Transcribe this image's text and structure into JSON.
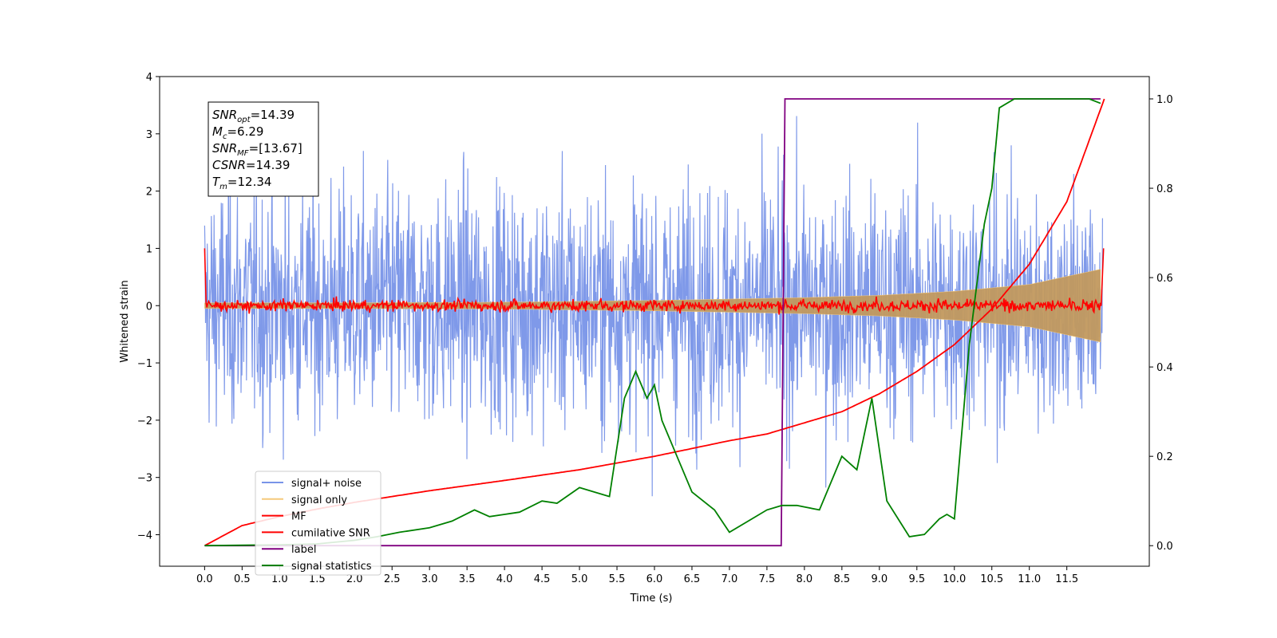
{
  "chart_data": {
    "type": "line",
    "title": "",
    "xlabel": "Time (s)",
    "ylabel": "Whitened strain",
    "xlim": [
      -0.6,
      12.6
    ],
    "ylim": [
      -4.55,
      4.0
    ],
    "y2lim": [
      -0.046,
      1.05
    ],
    "xticks": [
      0.0,
      0.5,
      1.0,
      1.5,
      2.0,
      2.5,
      3.0,
      3.5,
      4.0,
      4.5,
      5.0,
      5.5,
      6.0,
      6.5,
      7.0,
      7.5,
      8.0,
      8.5,
      9.0,
      9.5,
      10.0,
      10.5,
      11.0,
      11.5
    ],
    "xtick_labels": [
      "0.0",
      "0.5",
      "1.0",
      "1.5",
      "2.0",
      "2.5",
      "3.0",
      "3.5",
      "4.0",
      "4.5",
      "5.0",
      "5.5",
      "6.0",
      "6.5",
      "7.0",
      "7.5",
      "8.0",
      "8.5",
      "9.0",
      "9.5",
      "10.0",
      "10.5",
      "11.0",
      "11.5"
    ],
    "yticks": [
      4,
      3,
      2,
      1,
      0,
      -1,
      -2,
      -3,
      -4
    ],
    "ytick_labels": [
      "4",
      "3",
      "2",
      "1",
      "0",
      "−1",
      "−2",
      "−3",
      "−4"
    ],
    "y2ticks": [
      1.0,
      0.8,
      0.6,
      0.4,
      0.2,
      0.0
    ],
    "y2tick_labels": [
      "1.0",
      "0.8",
      "0.6",
      "0.4",
      "0.2",
      "0.0"
    ],
    "grid": false,
    "legend_position": "lower-left",
    "series": [
      {
        "name": "signal+ noise",
        "color": "#7894e8",
        "axis": "left",
        "note_style": "dense noise band, spikes roughly between -4 and 3.6"
      },
      {
        "name": "signal only",
        "color": "#f5c97a",
        "axis": "left",
        "envelope_amplitude": {
          "x": [
            0,
            2,
            4,
            6,
            8,
            9,
            10,
            11,
            12
          ],
          "y": [
            0.05,
            0.05,
            0.06,
            0.09,
            0.14,
            0.18,
            0.25,
            0.37,
            0.65
          ]
        }
      },
      {
        "name": "MF",
        "color": "#ff0000",
        "axis": "left",
        "note_style": "noisy trace centred on 0, about ±0.15"
      },
      {
        "name": "cumilative SNR",
        "color": "#ff0000",
        "axis": "right",
        "x": [
          0.0,
          0.5,
          1.0,
          1.5,
          2.0,
          3.0,
          4.0,
          5.0,
          6.0,
          7.0,
          7.5,
          8.0,
          8.5,
          9.0,
          9.5,
          10.0,
          10.5,
          11.0,
          11.5,
          12.0
        ],
        "y": [
          0.0,
          0.045,
          0.065,
          0.082,
          0.097,
          0.123,
          0.146,
          0.17,
          0.2,
          0.235,
          0.25,
          0.275,
          0.3,
          0.34,
          0.39,
          0.45,
          0.53,
          0.63,
          0.77,
          1.0
        ]
      },
      {
        "name": "label",
        "color": "#800080",
        "axis": "right",
        "x": [
          0.0,
          7.69,
          7.74,
          11.95
        ],
        "y": [
          0.0,
          0.0,
          1.0,
          1.0
        ]
      },
      {
        "name": "signal statistics",
        "color": "#008000",
        "axis": "right",
        "x": [
          0.0,
          0.5,
          1.0,
          1.5,
          2.0,
          2.3,
          2.6,
          3.0,
          3.3,
          3.6,
          3.8,
          4.0,
          4.2,
          4.5,
          4.7,
          5.0,
          5.2,
          5.4,
          5.5,
          5.6,
          5.75,
          5.9,
          6.0,
          6.1,
          6.3,
          6.5,
          6.8,
          7.0,
          7.3,
          7.5,
          7.7,
          7.9,
          8.2,
          8.5,
          8.7,
          8.9,
          9.1,
          9.4,
          9.6,
          9.8,
          9.9,
          10.0,
          10.2,
          10.4,
          10.5,
          10.6,
          10.8,
          11.0,
          11.5,
          11.8,
          11.95
        ],
        "y": [
          0.0,
          0.001,
          0.002,
          0.004,
          0.012,
          0.02,
          0.03,
          0.04,
          0.055,
          0.08,
          0.065,
          0.07,
          0.075,
          0.1,
          0.095,
          0.13,
          0.12,
          0.11,
          0.22,
          0.33,
          0.39,
          0.33,
          0.36,
          0.28,
          0.2,
          0.12,
          0.08,
          0.03,
          0.06,
          0.08,
          0.09,
          0.09,
          0.08,
          0.2,
          0.17,
          0.33,
          0.1,
          0.02,
          0.025,
          0.06,
          0.07,
          0.06,
          0.45,
          0.72,
          0.8,
          0.98,
          1.0,
          1.0,
          1.0,
          1.0,
          0.99
        ]
      }
    ]
  },
  "annotation": {
    "snr_opt": {
      "label": "SNR",
      "sub": "opt",
      "value": "=14.39"
    },
    "mc": {
      "label": "M",
      "sub": "c",
      "value": "=6.29"
    },
    "snr_mf": {
      "label": "SNR",
      "sub": "MF",
      "value": "=[13.67]"
    },
    "csnr": {
      "label": "CSNR",
      "sub": "",
      "value": "=14.39"
    },
    "tm": {
      "label": "T",
      "sub": "m",
      "value": "=12.34"
    }
  }
}
